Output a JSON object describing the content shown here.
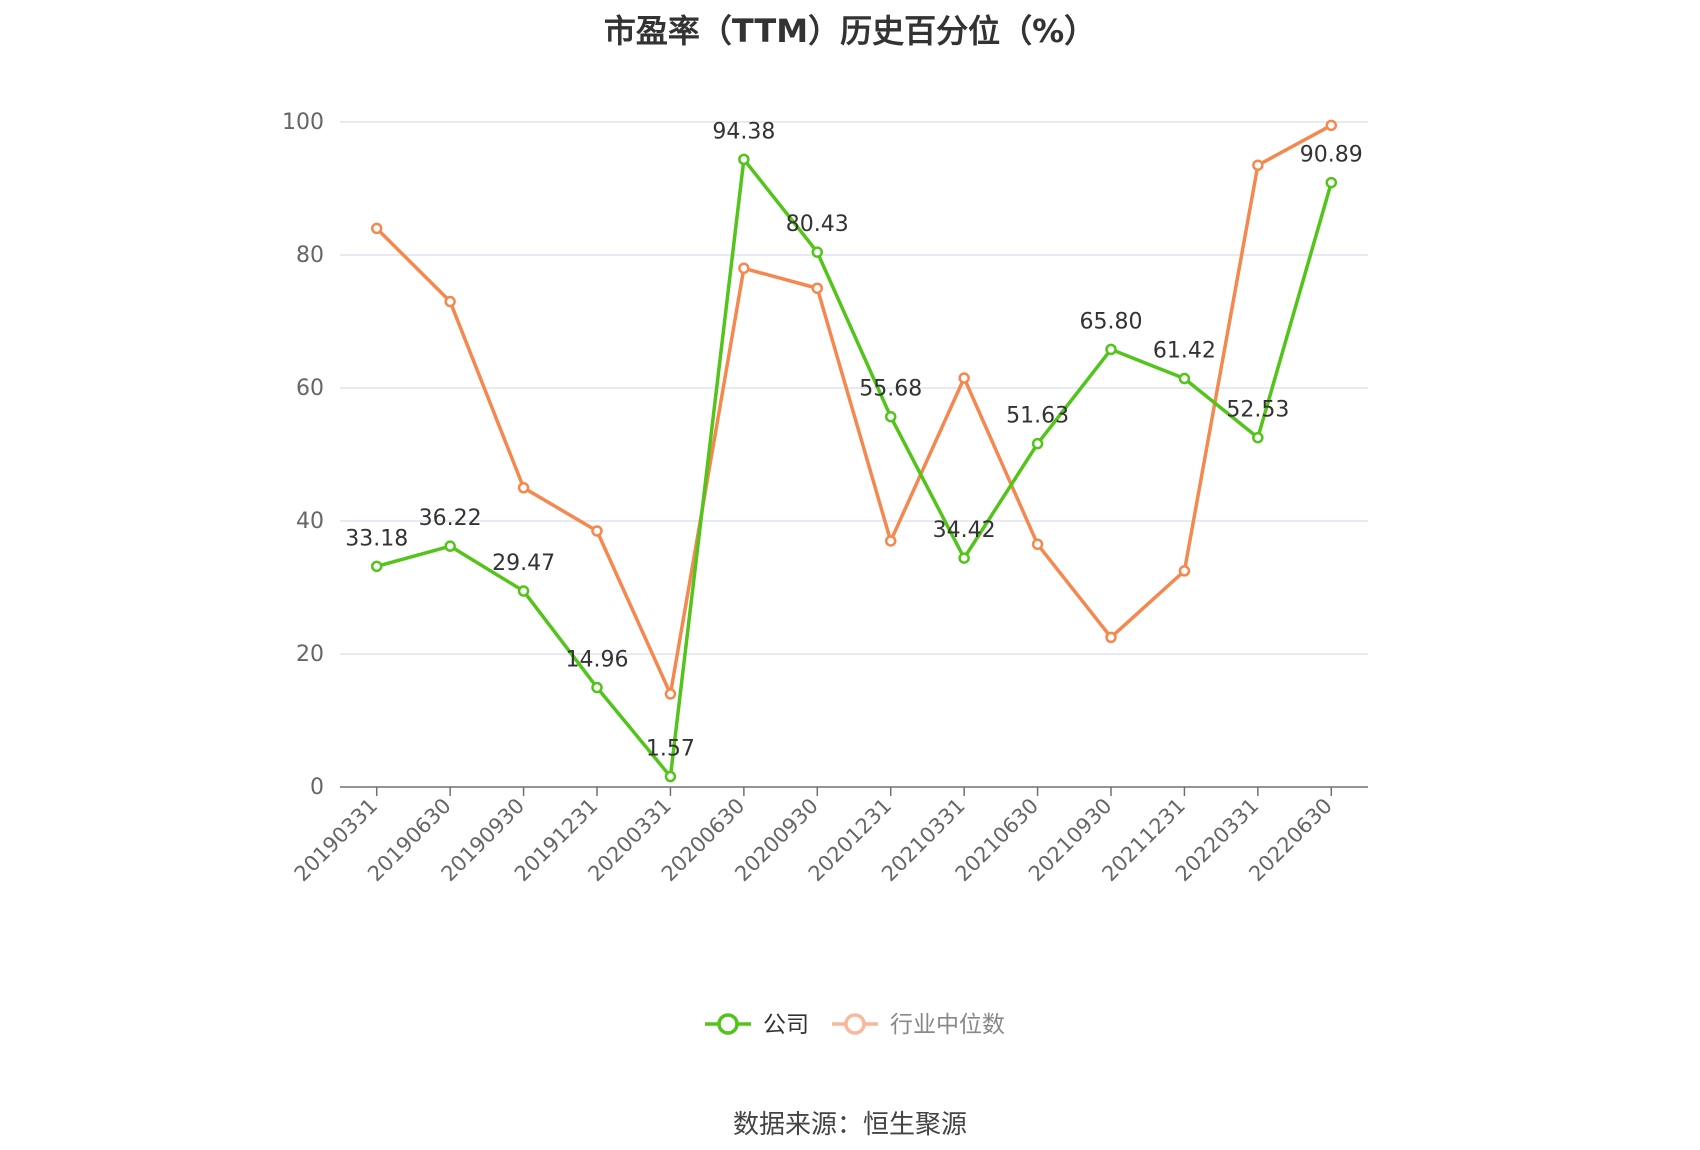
{
  "title": "市盈率（TTM）历史百分位（%）",
  "source": "数据来源：恒生聚源",
  "colors": {
    "company": "#52c41a",
    "industry": "#f5884f",
    "industry_legend": "#f9b79b",
    "grid": "#dfe3f0",
    "axis": "#666666",
    "label": "#333333"
  },
  "chart_data": {
    "type": "line",
    "title": "市盈率（TTM）历史百分位（%）",
    "xlabel": "",
    "ylabel": "",
    "ylim": [
      0,
      100
    ],
    "yticks": [
      0,
      20,
      40,
      60,
      80,
      100
    ],
    "grid": true,
    "legend_position": "bottom-center",
    "categories": [
      "20190331",
      "20190630",
      "20190930",
      "20191231",
      "20200331",
      "20200630",
      "20200930",
      "20201231",
      "20210331",
      "20210630",
      "20210930",
      "20211231",
      "20220331",
      "20220630"
    ],
    "series": [
      {
        "name": "公司",
        "color": "#52c41a",
        "values": [
          33.18,
          36.22,
          29.47,
          14.96,
          1.57,
          94.38,
          80.43,
          55.68,
          34.42,
          51.63,
          65.8,
          61.42,
          52.53,
          90.89
        ],
        "labels": [
          "33.18",
          "36.22",
          "29.47",
          "14.96",
          "1.57",
          "94.38",
          "80.43",
          "55.68",
          "34.42",
          "51.63",
          "65.80",
          "61.42",
          "52.53",
          "90.89"
        ]
      },
      {
        "name": "行业中位数",
        "color": "#f5884f",
        "values": [
          84,
          73,
          45,
          38.5,
          14,
          78,
          75,
          37,
          61.5,
          36.5,
          22.5,
          32.5,
          93.5,
          99.5
        ]
      }
    ]
  }
}
